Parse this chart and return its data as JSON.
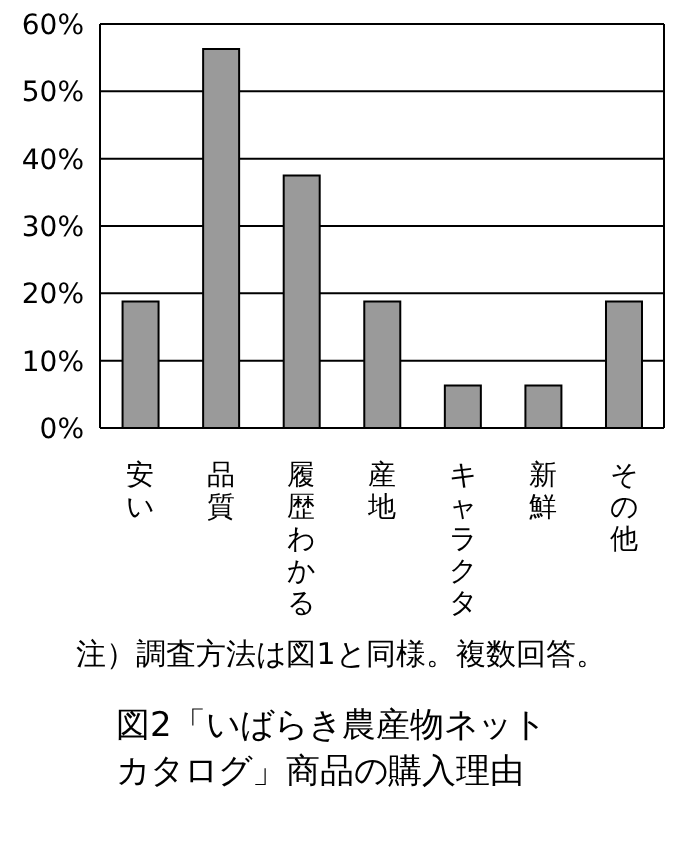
{
  "chart_data": {
    "type": "bar",
    "title": "図2「いばらき農産物ネットカタログ」商品の購入理由",
    "categories": [
      "安い",
      "品質",
      "履歴わかる",
      "産地",
      "キャラクタ",
      "新鮮",
      "その他"
    ],
    "values": [
      18.8,
      56.3,
      37.5,
      18.8,
      6.3,
      6.3,
      18.8
    ],
    "color": "#9a9a9a",
    "ylim": [
      0,
      60
    ],
    "yticks": [
      {
        "value": 0,
        "label": "0%"
      },
      {
        "value": 10,
        "label": "10%"
      },
      {
        "value": 20,
        "label": "20%"
      },
      {
        "value": 30,
        "label": "30%"
      },
      {
        "value": 40,
        "label": "40%"
      },
      {
        "value": 50,
        "label": "50%"
      },
      {
        "value": 60,
        "label": "60%"
      }
    ],
    "grid": "y",
    "annotations": [
      "注）調査方法は図1と同様。複数回答。"
    ]
  }
}
